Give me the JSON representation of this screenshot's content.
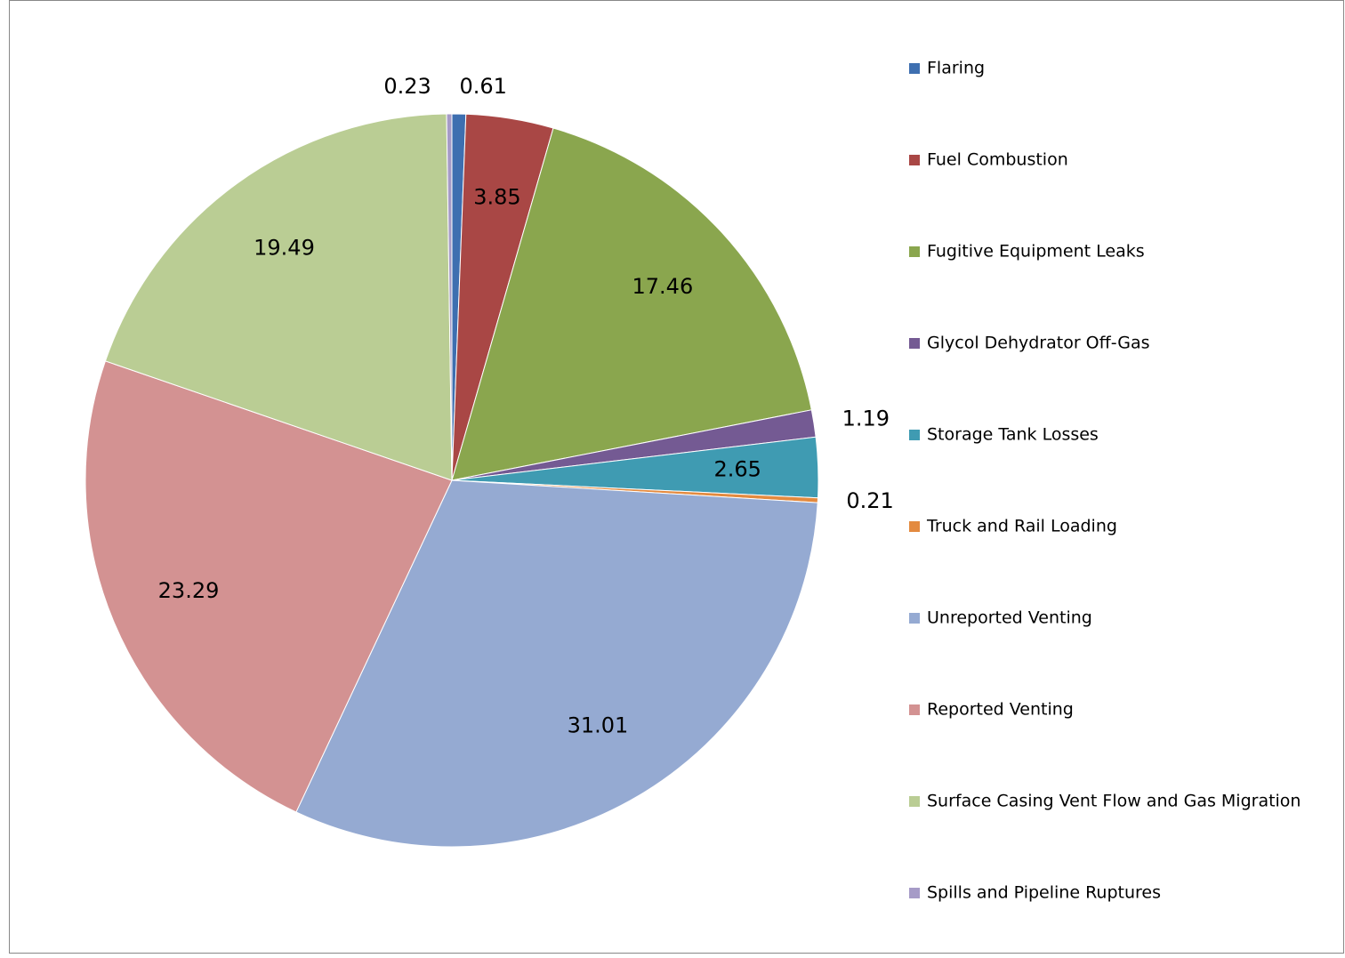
{
  "chart_data": {
    "type": "pie",
    "categories": [
      "Flaring",
      "Fuel Combustion",
      "Fugitive Equipment Leaks",
      "Glycol Dehydrator Off-Gas",
      "Storage Tank Losses",
      "Truck and Rail Loading",
      "Unreported Venting",
      "Reported Venting",
      "Surface Casing Vent Flow and Gas Migration",
      "Spills and Pipeline Ruptures"
    ],
    "values": [
      0.61,
      3.85,
      17.46,
      1.19,
      2.65,
      0.21,
      31.01,
      23.29,
      19.49,
      0.23
    ],
    "colors": [
      "#3e6fb0",
      "#a94745",
      "#8aa64e",
      "#745a93",
      "#3f9bb2",
      "#e38a3f",
      "#95aad2",
      "#d39292",
      "#bacd94",
      "#a69bc7"
    ],
    "legend": "right"
  }
}
